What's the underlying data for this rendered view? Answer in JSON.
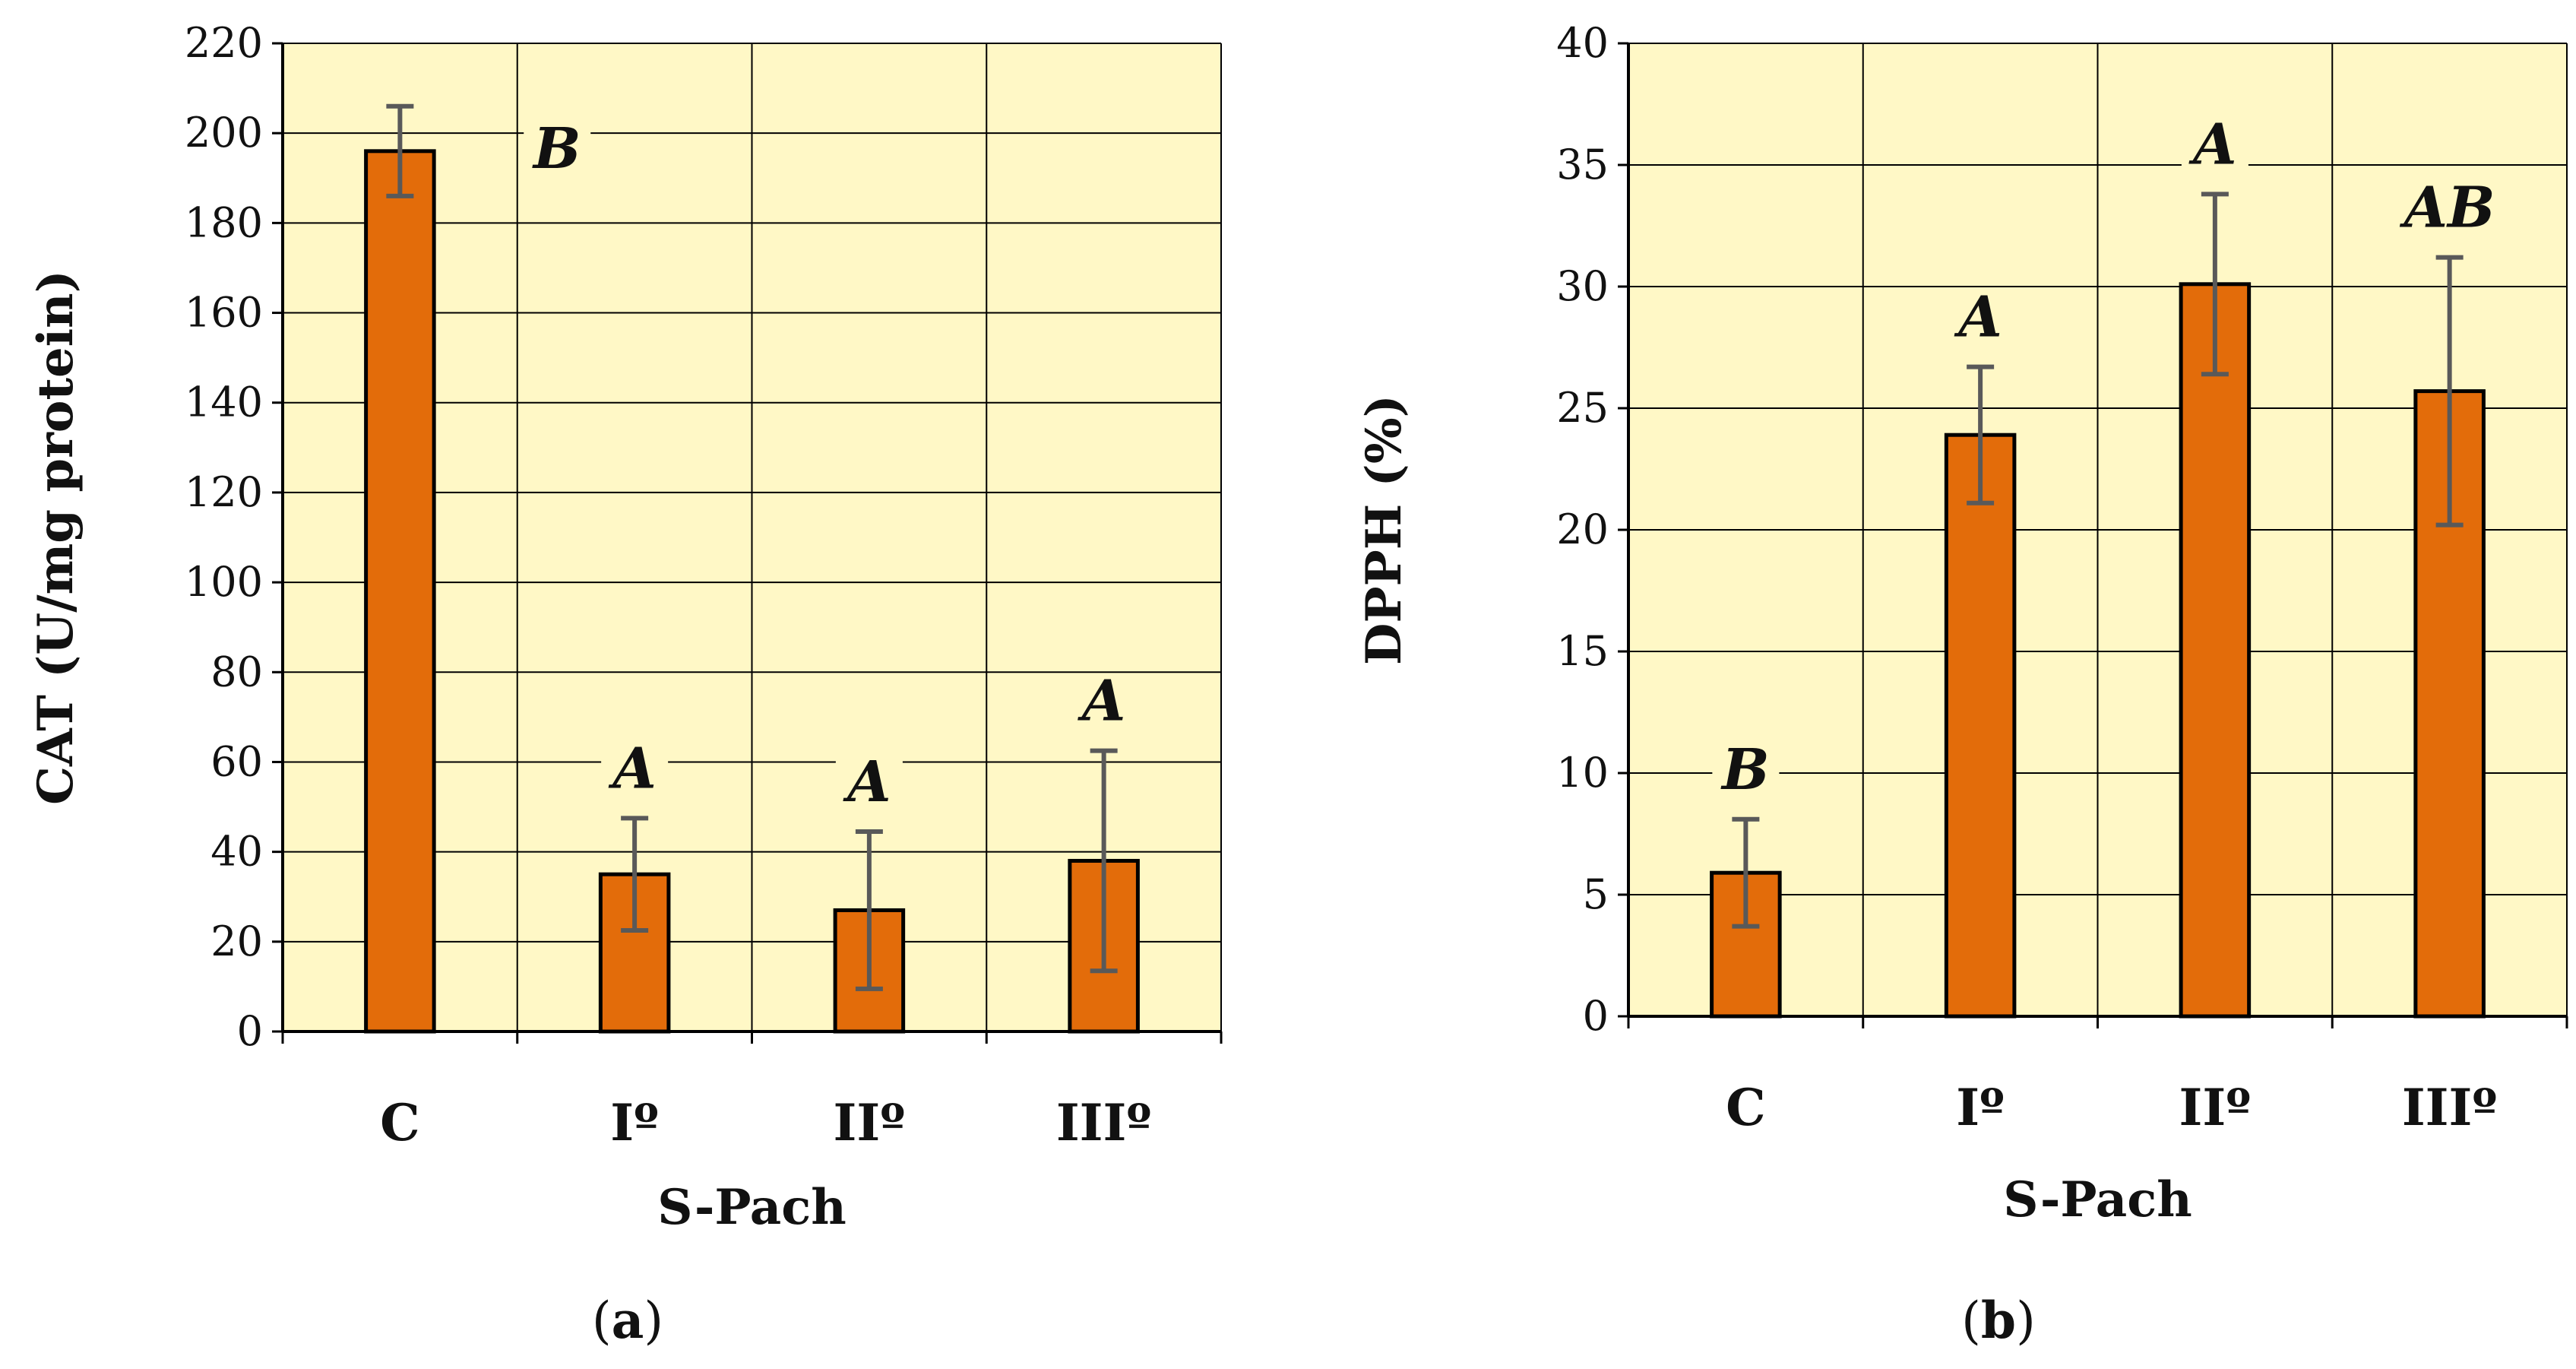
{
  "chart_data": [
    {
      "type": "bar",
      "panel_label": "a",
      "categories": [
        "C",
        "Iº",
        "IIº",
        "IIIº"
      ],
      "values": [
        196,
        35,
        27,
        38
      ],
      "error": [
        10,
        12.5,
        17.5,
        24.5
      ],
      "significance": [
        "B",
        "A",
        "A",
        "A"
      ],
      "xlabel": "S-Pach",
      "ylabel": "CAT (U/mg protein)",
      "ylim": [
        0,
        220
      ],
      "yticks": [
        0,
        20,
        40,
        60,
        80,
        100,
        120,
        140,
        160,
        180,
        200,
        220
      ],
      "grid": true,
      "legend": "none"
    },
    {
      "type": "bar",
      "panel_label": "b",
      "categories": [
        "C",
        "Iº",
        "IIº",
        "IIIº"
      ],
      "values": [
        5.9,
        23.9,
        30.1,
        25.7
      ],
      "error": [
        2.2,
        2.8,
        3.7,
        5.5
      ],
      "significance": [
        "B",
        "A",
        "A",
        "AB"
      ],
      "xlabel": "S-Pach",
      "ylabel": "DPPH (%)",
      "ylim": [
        0,
        40
      ],
      "yticks": [
        0,
        5,
        10,
        15,
        20,
        25,
        30,
        35,
        40
      ],
      "grid": true,
      "legend": "none"
    }
  ],
  "colors": {
    "plot_background": "#fff8c6",
    "bar_fill": "#e36c0a",
    "bar_edge": "#000000",
    "error_bar": "#595959",
    "grid": "#000000"
  }
}
